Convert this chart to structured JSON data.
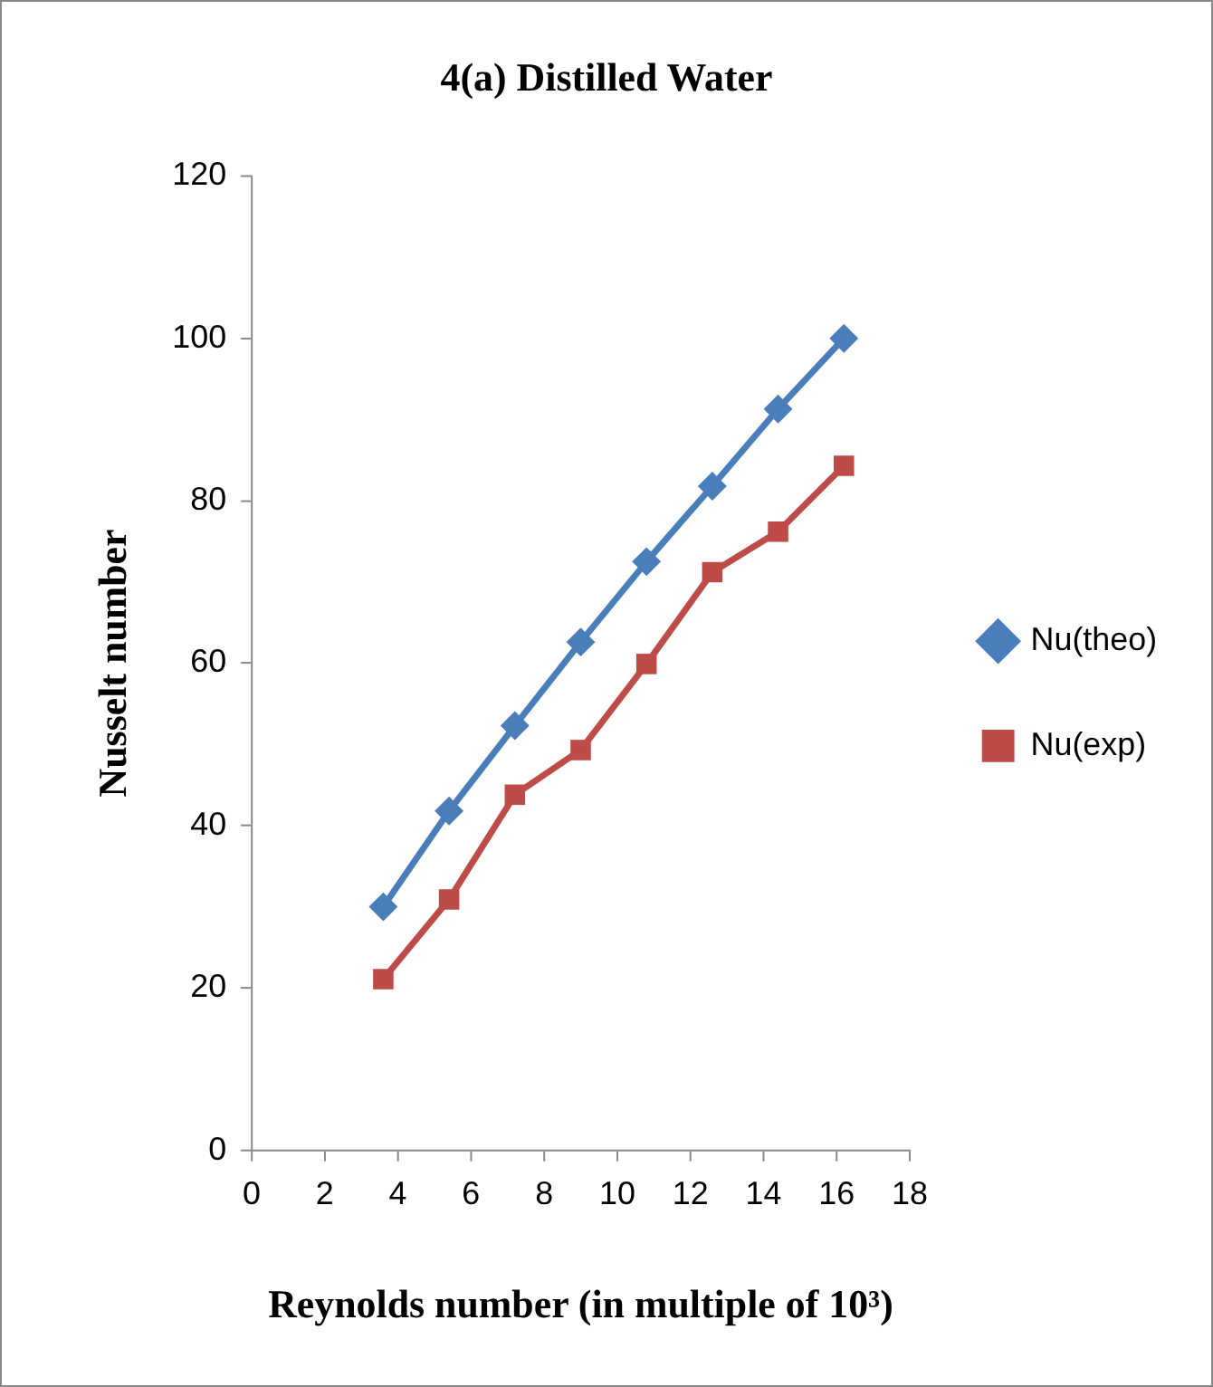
{
  "chart_data": {
    "type": "line",
    "title": "4(a) Distilled Water",
    "xlabel": "Reynolds number (in multiple of 10³)",
    "ylabel": "Nusselt number",
    "x": [
      3.6,
      5.4,
      7.2,
      9.0,
      10.8,
      12.6,
      14.4,
      16.2
    ],
    "series": [
      {
        "name": "Nu(theo)",
        "color": "#4a7ebb",
        "marker": "diamond",
        "values": [
          30,
          41.8,
          52.3,
          62.6,
          72.5,
          81.8,
          91.3,
          100
        ]
      },
      {
        "name": "Nu(exp)",
        "color": "#be4b48",
        "marker": "square",
        "values": [
          21.1,
          30.9,
          43.8,
          49.3,
          59.9,
          71.2,
          76.2,
          84.3
        ]
      }
    ],
    "xlim": [
      0,
      18
    ],
    "xticks": [
      0,
      2,
      4,
      6,
      8,
      10,
      12,
      14,
      16,
      18
    ],
    "ylim": [
      0,
      120
    ],
    "yticks": [
      0,
      20,
      40,
      60,
      80,
      100,
      120
    ],
    "grid": false,
    "legend": "right",
    "line_style": "solid"
  }
}
